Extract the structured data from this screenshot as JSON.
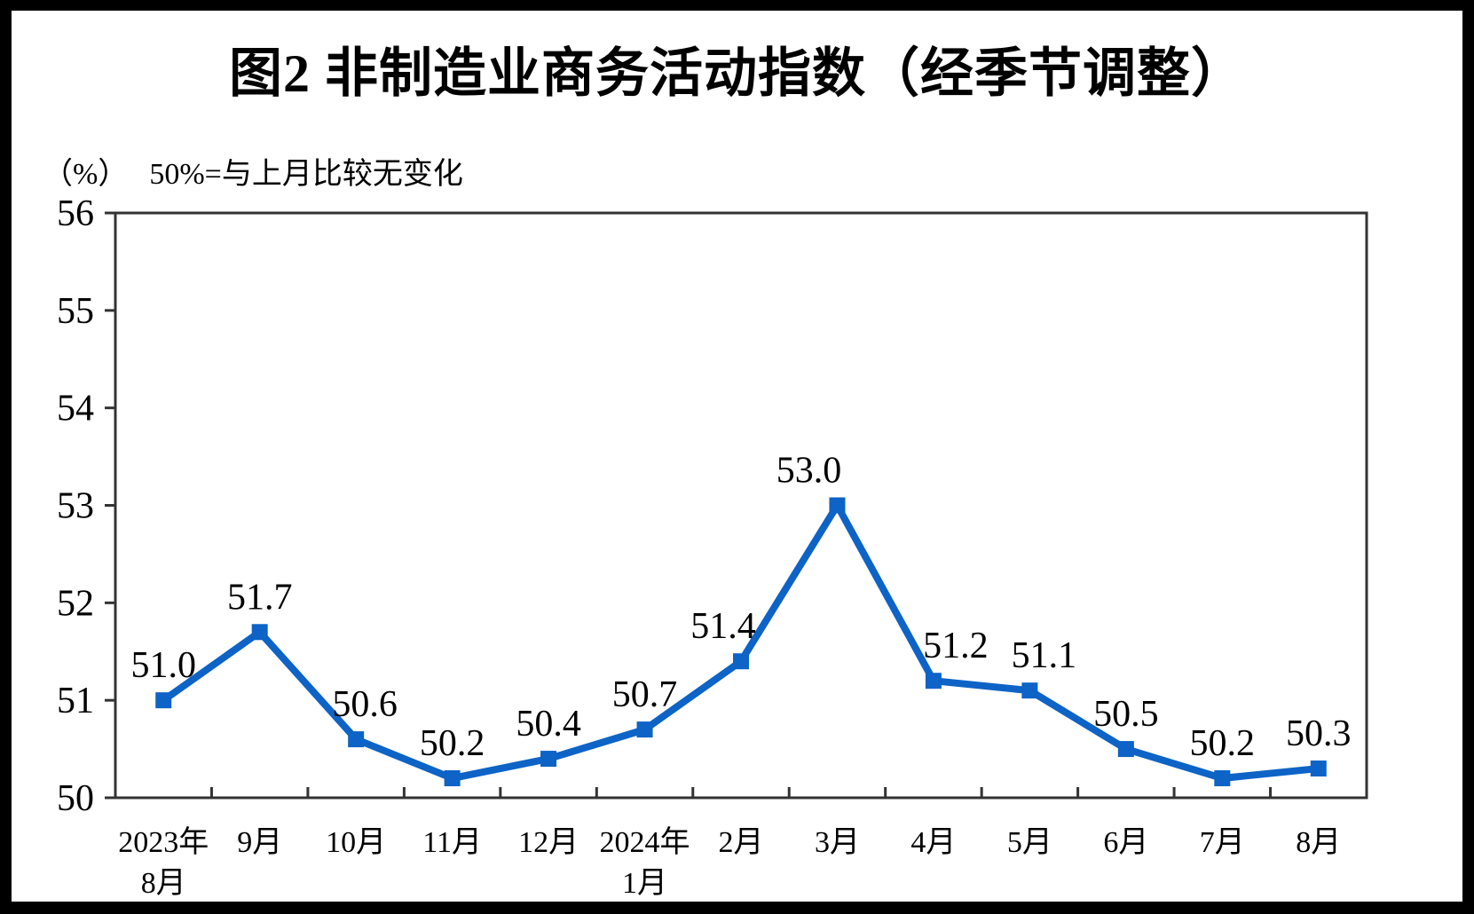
{
  "figure": {
    "title": "图2 非制造业商务活动指数（经季节调整）",
    "unit_label": "（%）",
    "note": "50%=与上月比较无变化"
  },
  "chart_data": {
    "type": "line",
    "series_name": "非制造业商务活动指数",
    "categories": [
      [
        "2023年",
        "8月"
      ],
      [
        "9月"
      ],
      [
        "10月"
      ],
      [
        "11月"
      ],
      [
        "12月"
      ],
      [
        "2024年",
        "1月"
      ],
      [
        "2月"
      ],
      [
        "3月"
      ],
      [
        "4月"
      ],
      [
        "5月"
      ],
      [
        "6月"
      ],
      [
        "7月"
      ],
      [
        "8月"
      ]
    ],
    "values": [
      51.0,
      51.7,
      50.6,
      50.2,
      50.4,
      50.7,
      51.4,
      53.0,
      51.2,
      51.1,
      50.5,
      50.2,
      50.3
    ],
    "data_labels": [
      "51.0",
      "51.7",
      "50.6",
      "50.2",
      "50.4",
      "50.7",
      "51.4",
      "53.0",
      "51.2",
      "51.1",
      "50.5",
      "50.2",
      "50.3"
    ],
    "ylim": [
      50,
      56
    ],
    "ytick_interval": 1,
    "yticks": [
      "50",
      "51",
      "52",
      "53",
      "54",
      "55",
      "56"
    ],
    "grid": false,
    "legend": "none",
    "line_color": "#0D63C6",
    "marker": "square",
    "axis_color": "#333333",
    "text_color": "#000000",
    "plot_background": "#FFFFFF",
    "frame_color": "#000000"
  }
}
